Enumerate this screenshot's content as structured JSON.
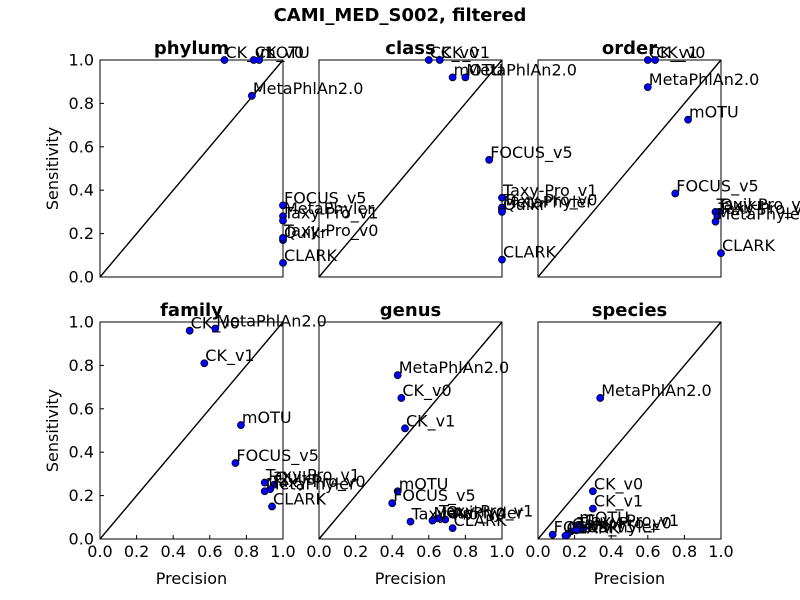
{
  "figure": {
    "title": "CAMI_MED_S002, filtered"
  },
  "chart_data": [
    {
      "type": "scatter",
      "title": "phylum",
      "xlabel": "",
      "ylabel": "Sensitivity",
      "xlim": [
        0,
        1
      ],
      "ylim": [
        0,
        1
      ],
      "xticks": [],
      "yticks": [
        "0.0",
        "0.2",
        "0.4",
        "0.6",
        "0.8",
        "1.0"
      ],
      "diagonal": true,
      "points": [
        {
          "label": "CK_v1",
          "x": 0.68,
          "y": 1.0
        },
        {
          "label": "CK_v0",
          "x": 0.84,
          "y": 1.0
        },
        {
          "label": "mOTU",
          "x": 0.87,
          "y": 1.0
        },
        {
          "label": "MetaPhlAn2.0",
          "x": 0.83,
          "y": 0.835
        },
        {
          "label": "FOCUS_v5",
          "x": 1.0,
          "y": 0.33
        },
        {
          "label": "MetaPhyler",
          "x": 1.0,
          "y": 0.28
        },
        {
          "label": "Taxy-Pro_v1",
          "x": 1.0,
          "y": 0.26
        },
        {
          "label": "Quikr",
          "x": 1.0,
          "y": 0.17
        },
        {
          "label": "Taxy-Pro_v0",
          "x": 1.0,
          "y": 0.18
        },
        {
          "label": "CLARK",
          "x": 1.0,
          "y": 0.065
        }
      ]
    },
    {
      "type": "scatter",
      "title": "class",
      "xlabel": "",
      "ylabel": "",
      "xlim": [
        0,
        1
      ],
      "ylim": [
        0,
        1
      ],
      "xticks": [],
      "yticks": [],
      "diagonal": true,
      "points": [
        {
          "label": "CK_v0",
          "x": 0.6,
          "y": 1.0
        },
        {
          "label": "CK_v1",
          "x": 0.66,
          "y": 1.0
        },
        {
          "label": "mOTU",
          "x": 0.73,
          "y": 0.92
        },
        {
          "label": "MetaPhlAn2.0",
          "x": 0.8,
          "y": 0.92
        },
        {
          "label": "FOCUS_v5",
          "x": 0.93,
          "y": 0.54
        },
        {
          "label": "Taxy-Pro_v1",
          "x": 1.0,
          "y": 0.365
        },
        {
          "label": "Taxy-Pro_v0",
          "x": 1.0,
          "y": 0.32
        },
        {
          "label": "MetaPhyler",
          "x": 1.0,
          "y": 0.31
        },
        {
          "label": "Quikr",
          "x": 1.0,
          "y": 0.3
        },
        {
          "label": "CLARK",
          "x": 1.0,
          "y": 0.08
        }
      ]
    },
    {
      "type": "scatter",
      "title": "order",
      "xlabel": "",
      "ylabel": "",
      "xlim": [
        0,
        1
      ],
      "ylim": [
        0,
        1
      ],
      "xticks": [],
      "yticks": [],
      "diagonal": true,
      "points": [
        {
          "label": "CK_v1",
          "x": 0.6,
          "y": 1.0
        },
        {
          "label": "CK_v0",
          "x": 0.64,
          "y": 1.0
        },
        {
          "label": "MetaPhlAn2.0",
          "x": 0.6,
          "y": 0.875
        },
        {
          "label": "mOTU",
          "x": 0.82,
          "y": 0.725
        },
        {
          "label": "FOCUS_v5",
          "x": 0.75,
          "y": 0.385
        },
        {
          "label": "Taxy-Pro_v1",
          "x": 0.97,
          "y": 0.3
        },
        {
          "label": "Quikr",
          "x": 0.99,
          "y": 0.3
        },
        {
          "label": "Taxy-Pro_v0",
          "x": 0.98,
          "y": 0.28
        },
        {
          "label": "MetaPhyler",
          "x": 0.97,
          "y": 0.255
        },
        {
          "label": "CLARK",
          "x": 1.0,
          "y": 0.11
        }
      ]
    },
    {
      "type": "scatter",
      "title": "family",
      "xlabel": "Precision",
      "ylabel": "Sensitivity",
      "xlim": [
        0,
        1
      ],
      "ylim": [
        0,
        1
      ],
      "xticks": [
        "0.0",
        "0.2",
        "0.4",
        "0.6",
        "0.8",
        "1.0"
      ],
      "yticks": [
        "0.0",
        "0.2",
        "0.4",
        "0.6",
        "0.8",
        "1.0"
      ],
      "diagonal": true,
      "points": [
        {
          "label": "CK_v0",
          "x": 0.49,
          "y": 0.96
        },
        {
          "label": "MetaPhlAn2.0",
          "x": 0.63,
          "y": 0.97
        },
        {
          "label": "CK_v1",
          "x": 0.57,
          "y": 0.81
        },
        {
          "label": "mOTU",
          "x": 0.77,
          "y": 0.525
        },
        {
          "label": "FOCUS_v5",
          "x": 0.74,
          "y": 0.35
        },
        {
          "label": "Taxy-Pro_v1",
          "x": 0.9,
          "y": 0.26
        },
        {
          "label": "Quikr",
          "x": 0.95,
          "y": 0.25
        },
        {
          "label": "Taxy-Pro_v0",
          "x": 0.93,
          "y": 0.23
        },
        {
          "label": "MetaPhyler",
          "x": 0.9,
          "y": 0.22
        },
        {
          "label": "CLARK",
          "x": 0.94,
          "y": 0.15
        }
      ]
    },
    {
      "type": "scatter",
      "title": "genus",
      "xlabel": "Precision",
      "ylabel": "",
      "xlim": [
        0,
        1
      ],
      "ylim": [
        0,
        1
      ],
      "xticks": [
        "0.0",
        "0.2",
        "0.4",
        "0.6",
        "0.8",
        "1.0"
      ],
      "yticks": [],
      "diagonal": true,
      "points": [
        {
          "label": "MetaPhlAn2.0",
          "x": 0.43,
          "y": 0.755
        },
        {
          "label": "CK_v0",
          "x": 0.45,
          "y": 0.65
        },
        {
          "label": "CK_v1",
          "x": 0.47,
          "y": 0.51
        },
        {
          "label": "mOTU",
          "x": 0.43,
          "y": 0.22
        },
        {
          "label": "FOCUS_v5",
          "x": 0.4,
          "y": 0.165
        },
        {
          "label": "Taxy-Pro_v1",
          "x": 0.65,
          "y": 0.095
        },
        {
          "label": "Quikr",
          "x": 0.69,
          "y": 0.09
        },
        {
          "label": "MetaPhyler",
          "x": 0.62,
          "y": 0.085
        },
        {
          "label": "CLARK",
          "x": 0.73,
          "y": 0.05
        },
        {
          "label": "Taxy-Pro_v0",
          "x": 0.5,
          "y": 0.08
        }
      ]
    },
    {
      "type": "scatter",
      "title": "species",
      "xlabel": "Precision",
      "ylabel": "",
      "xlim": [
        0,
        1
      ],
      "ylim": [
        0,
        1
      ],
      "xticks": [
        "0.0",
        "0.2",
        "0.4",
        "0.6",
        "0.8",
        "1.0"
      ],
      "yticks": [],
      "diagonal": true,
      "points": [
        {
          "label": "MetaPhlAn2.0",
          "x": 0.34,
          "y": 0.65
        },
        {
          "label": "CK_v0",
          "x": 0.3,
          "y": 0.22
        },
        {
          "label": "CK_v1",
          "x": 0.3,
          "y": 0.14
        },
        {
          "label": "mOTU",
          "x": 0.22,
          "y": 0.065
        },
        {
          "label": "FOCUS_v5",
          "x": 0.08,
          "y": 0.02
        },
        {
          "label": "Taxy-Pro_v1",
          "x": 0.25,
          "y": 0.05
        },
        {
          "label": "Quikr",
          "x": 0.18,
          "y": 0.035
        },
        {
          "label": "MetaPhyler",
          "x": 0.16,
          "y": 0.02
        },
        {
          "label": "Taxy-Pro_v0",
          "x": 0.21,
          "y": 0.04
        },
        {
          "label": "CLARK",
          "x": 0.15,
          "y": 0.015
        }
      ]
    }
  ],
  "colors": {
    "point_fill": "#0000ff",
    "point_stroke": "#000000",
    "axes": "#000000",
    "background": "#ffffff"
  }
}
